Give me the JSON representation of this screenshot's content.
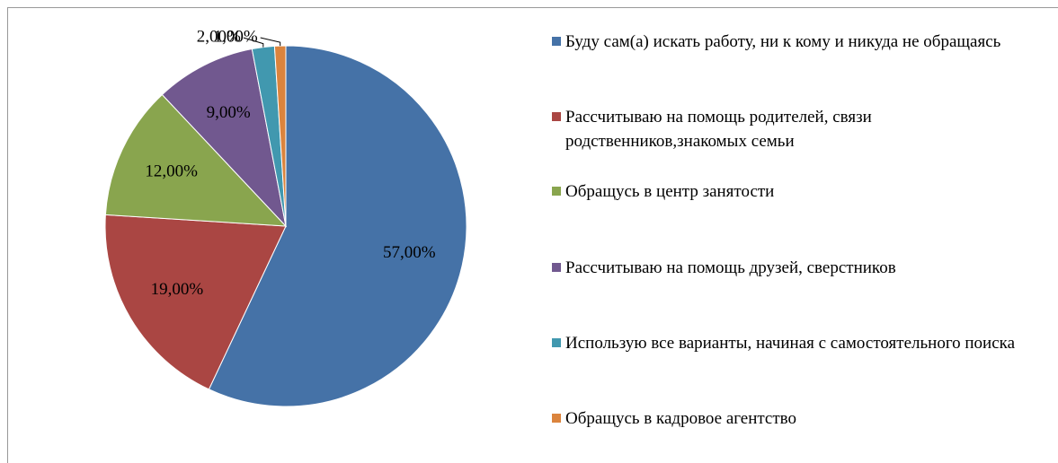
{
  "chart_data": {
    "type": "pie",
    "categories": [
      "Буду сам(а) искать работу, ни к кому и никуда не обращаясь",
      "Рассчитываю на помощь родителей, связи родственников,знакомых семьи",
      "Обращусь в центр занятости",
      "Рассчитываю на помощь друзей, сверстников",
      "Использую все варианты, начиная с самостоятельного поиска",
      "Обращусь в кадровое агентство"
    ],
    "values": [
      57,
      19,
      12,
      9,
      2,
      1
    ],
    "value_labels": [
      "57,00%",
      "19,00%",
      "12,00%",
      "9,00%",
      "2,00%",
      "1,00%"
    ],
    "colors": [
      "#4572a7",
      "#aa4643",
      "#89a54e",
      "#71588f",
      "#4198af",
      "#db843d"
    ],
    "legend": "right"
  }
}
